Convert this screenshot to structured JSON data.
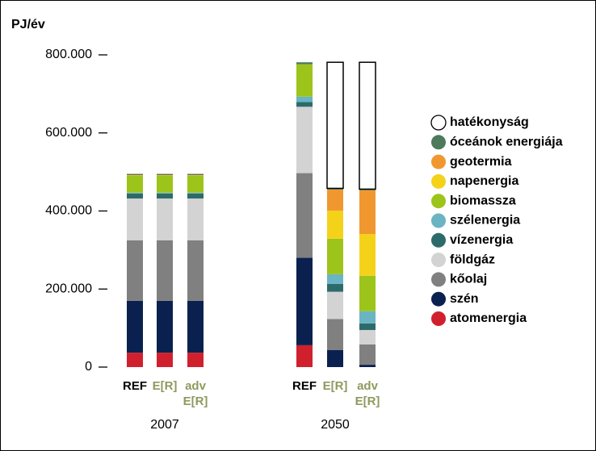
{
  "chart_data": {
    "type": "stacked_bar",
    "y_label": "PJ/év",
    "categories": [
      "REF",
      "E[R]",
      "adv E[R]",
      "REF",
      "E[R]",
      "adv E[R]"
    ],
    "category_colors": [
      "#000000",
      "#8d9a5e",
      "#8d9a5e",
      "#000000",
      "#8d9a5e",
      "#8d9a5e"
    ],
    "groups": [
      "2007",
      "2050"
    ],
    "ylim": [
      0,
      800000
    ],
    "yticks": [
      {
        "value": 0,
        "label": "0"
      },
      {
        "value": 200000,
        "label": "200.000"
      },
      {
        "value": 400000,
        "label": "400.000"
      },
      {
        "value": 600000,
        "label": "600.000"
      },
      {
        "value": 800000,
        "label": "800.000"
      }
    ],
    "series": [
      {
        "name": "atomenergia",
        "color": "#d0202e",
        "values": [
          37000,
          37000,
          37000,
          56000,
          0,
          0
        ]
      },
      {
        "name": "szén",
        "color": "#0a2150",
        "values": [
          133000,
          133000,
          133000,
          224000,
          44000,
          6000
        ]
      },
      {
        "name": "kőolaj",
        "color": "#808080",
        "values": [
          155000,
          155000,
          155000,
          217000,
          79000,
          52000
        ]
      },
      {
        "name": "földgáz",
        "color": "#d3d3d3",
        "values": [
          107000,
          107000,
          107000,
          170000,
          70000,
          37000
        ]
      },
      {
        "name": "vízenergia",
        "color": "#2d6b6b",
        "values": [
          13000,
          13000,
          13000,
          12000,
          20000,
          17000
        ]
      },
      {
        "name": "szélenergia",
        "color": "#6ab4c4",
        "values": [
          2000,
          2000,
          2000,
          14000,
          25000,
          31000
        ]
      },
      {
        "name": "biomassza",
        "color": "#9dc41a",
        "values": [
          43000,
          43000,
          43000,
          83000,
          91000,
          91000
        ]
      },
      {
        "name": "napenergia",
        "color": "#f5d21a",
        "values": [
          1000,
          1000,
          1000,
          0,
          72000,
          107000
        ]
      },
      {
        "name": "geotermia",
        "color": "#f0982f",
        "values": [
          1000,
          1000,
          1000,
          0,
          54000,
          112000
        ]
      },
      {
        "name": "óceánok energiája",
        "color": "#4d7a5a",
        "values": [
          3000,
          3000,
          3000,
          5000,
          3000,
          3000
        ]
      },
      {
        "name": "hatékonyság",
        "color": "#ffffff",
        "values": [
          0,
          0,
          0,
          0,
          323000,
          325000
        ]
      }
    ]
  }
}
